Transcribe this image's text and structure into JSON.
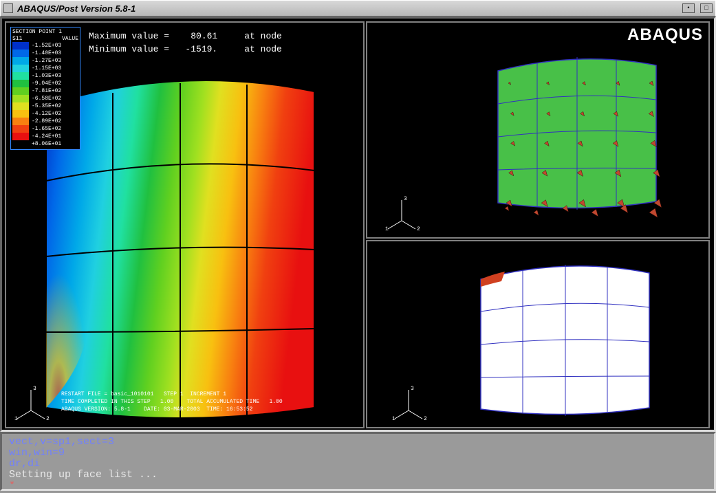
{
  "window": {
    "title": "ABAQUS/Post  Version 5.8-1"
  },
  "brand": "ABAQUS",
  "legend": {
    "title": "SECTION POINT 1",
    "field": "S11",
    "value_hdr": "VALUE",
    "rows": [
      {
        "color": "#0030c8",
        "label": "-1.52E+03"
      },
      {
        "color": "#0068e8",
        "label": "-1.40E+03"
      },
      {
        "color": "#00a8e8",
        "label": "-1.27E+03"
      },
      {
        "color": "#20d0e0",
        "label": "-1.15E+03"
      },
      {
        "color": "#20e0a0",
        "label": "-1.03E+03"
      },
      {
        "color": "#20c040",
        "label": "-9.04E+02"
      },
      {
        "color": "#60d020",
        "label": "-7.81E+02"
      },
      {
        "color": "#a0e020",
        "label": "-6.58E+02"
      },
      {
        "color": "#e0e020",
        "label": "-5.35E+02"
      },
      {
        "color": "#f8c010",
        "label": "-4.12E+02"
      },
      {
        "color": "#f88010",
        "label": "-2.89E+02"
      },
      {
        "color": "#f04010",
        "label": "-1.65E+02"
      },
      {
        "color": "#e81010",
        "label": "-4.24E+01"
      },
      {
        "color": "#e81010",
        "label": "+8.06E+01"
      }
    ]
  },
  "stats": {
    "line1": "Maximum value =    80.61     at node",
    "line2": "Minimum value =   -1519.     at node"
  },
  "footer": {
    "l1": "RESTART FILE = basic_1010101   STEP 1  INCREMENT 1",
    "l2": "TIME COMPLETED IN THIS STEP   1.00    TOTAL ACCUMULATED TIME   1.00",
    "l3": "ABAQUS VERSION: 5.8-1    DATE: 03-MAR-2003  TIME: 16:53:52"
  },
  "console": {
    "l1": "vect,v=sp1,sect=3",
    "l2": "win,win=9",
    "l3": "dr,di",
    "l4": "Setting up face list ...",
    "l5": "*"
  },
  "mesh": {
    "grid_color": "#000000",
    "grid_color_alt": "#4040ff",
    "tr_fill": "#48c048",
    "br_fill": "#ffffff",
    "br_accent": "#d04020",
    "arrow_color": "#c04830"
  },
  "triad": {
    "labels": [
      "1",
      "2",
      "3"
    ],
    "color": "#ffffff"
  }
}
